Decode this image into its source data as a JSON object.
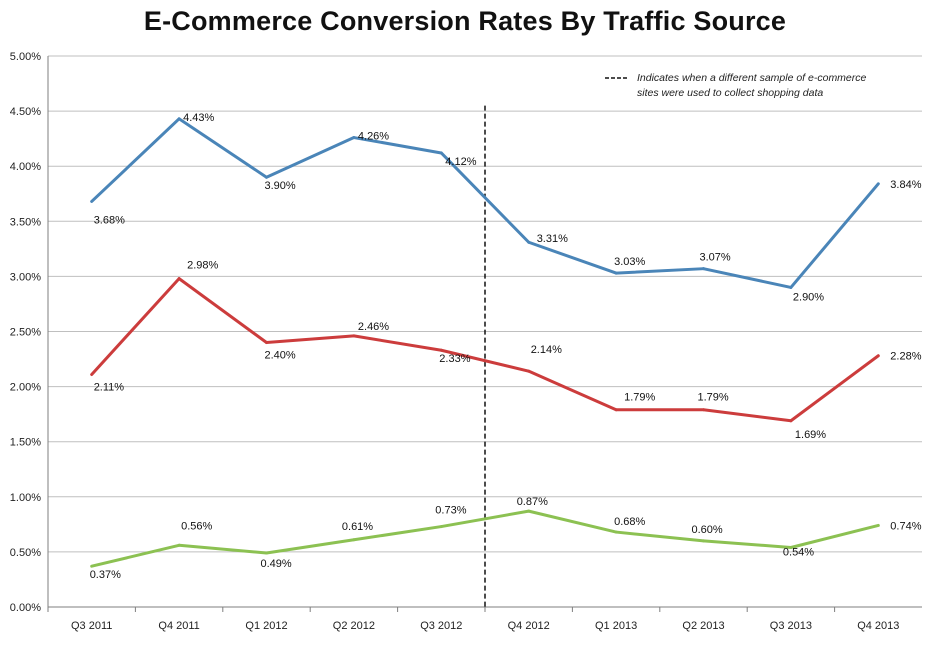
{
  "chart_data": {
    "type": "line",
    "title": "E-Commerce Conversion Rates By Traffic Source",
    "categories": [
      "Q3 2011",
      "Q4 2011",
      "Q1 2012",
      "Q2 2012",
      "Q3 2012",
      "Q4 2012",
      "Q1 2013",
      "Q2 2013",
      "Q3 2013",
      "Q4 2013"
    ],
    "ylim": [
      0,
      5
    ],
    "yticks": [
      0,
      0.5,
      1,
      1.5,
      2,
      2.5,
      3,
      3.5,
      4,
      4.5,
      5
    ],
    "ytick_labels": [
      "0.00%",
      "0.50%",
      "1.00%",
      "1.50%",
      "2.00%",
      "2.50%",
      "3.00%",
      "3.50%",
      "4.00%",
      "4.50%",
      "5.00%"
    ],
    "grid": "horizontal",
    "series": [
      {
        "color": "#4a85b8",
        "values": [
          3.68,
          4.43,
          3.9,
          4.26,
          4.12,
          3.31,
          3.03,
          3.07,
          2.9,
          3.84
        ],
        "labels": [
          "3.68%",
          "4.43%",
          "3.90%",
          "4.26%",
          "4.12%",
          "3.31%",
          "3.03%",
          "3.07%",
          "2.90%",
          "3.84%"
        ]
      },
      {
        "color": "#cc3c3c",
        "values": [
          2.11,
          2.98,
          2.4,
          2.46,
          2.33,
          2.14,
          1.79,
          1.79,
          1.69,
          2.28
        ],
        "labels": [
          "2.11%",
          "2.98%",
          "2.40%",
          "2.46%",
          "2.33%",
          "2.14%",
          "1.79%",
          "1.79%",
          "1.69%",
          "2.28%"
        ]
      },
      {
        "color": "#8cc152",
        "values": [
          0.37,
          0.56,
          0.49,
          0.61,
          0.73,
          0.87,
          0.68,
          0.6,
          0.54,
          0.74
        ],
        "labels": [
          "0.37%",
          "0.56%",
          "0.49%",
          "0.61%",
          "0.73%",
          "0.87%",
          "0.68%",
          "0.60%",
          "0.54%",
          "0.74%"
        ]
      }
    ],
    "annotation": {
      "text_lines": [
        "Indicates when a different sample of e-commerce",
        "sites were used to collect shopping data"
      ],
      "between_categories": [
        "Q3 2012",
        "Q4 2012"
      ]
    }
  }
}
